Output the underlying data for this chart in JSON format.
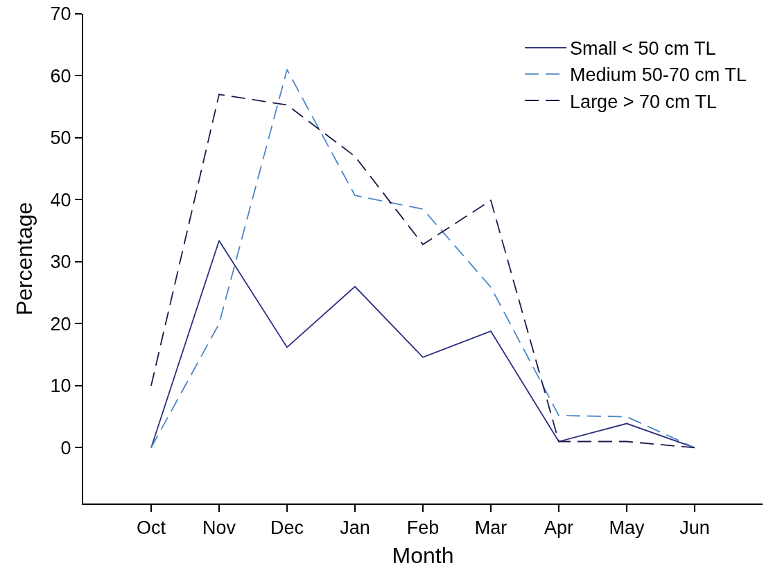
{
  "chart_data": {
    "type": "line",
    "xlabel": "Month",
    "ylabel": "Percentage",
    "categories": [
      "Oct",
      "Nov",
      "Dec",
      "Jan",
      "Feb",
      "Mar",
      "Apr",
      "May",
      "Jun"
    ],
    "ylim": [
      -9,
      70
    ],
    "yticks": [
      0,
      10,
      20,
      30,
      40,
      50,
      60,
      70
    ],
    "legend": "top right",
    "series": [
      {
        "name": "Small < 50 cm TL",
        "color": "#2b2f7e",
        "line_style": "solid",
        "values": [
          0,
          33.4,
          16.2,
          26.0,
          14.6,
          18.8,
          1.0,
          3.9,
          0
        ]
      },
      {
        "name": "Medium 50-70 cm TL",
        "color": "#4a86c8",
        "line_style": "dashed",
        "values": [
          0,
          20.0,
          61.0,
          40.7,
          38.5,
          25.9,
          5.2,
          5.0,
          0
        ]
      },
      {
        "name": "Large > 70 cm TL",
        "color": "#1b1b4d",
        "line_style": "dashed",
        "values": [
          10.0,
          57.0,
          55.3,
          47.0,
          32.8,
          39.9,
          1.0,
          1.0,
          0
        ]
      }
    ]
  }
}
